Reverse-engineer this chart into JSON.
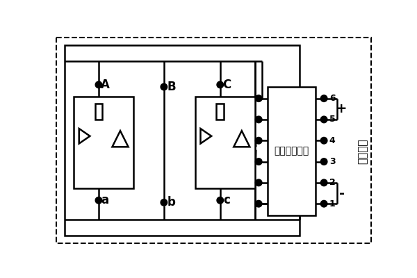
{
  "bg_color": "#ffffff",
  "line_color": "#000000",
  "lw": 1.8,
  "control_box_label": "过零触发电路",
  "ctrl_label": "控制信号",
  "output_labels": [
    "6",
    "5",
    "4",
    "3",
    "2",
    "1"
  ],
  "plus_label": "+",
  "minus_label": "-"
}
